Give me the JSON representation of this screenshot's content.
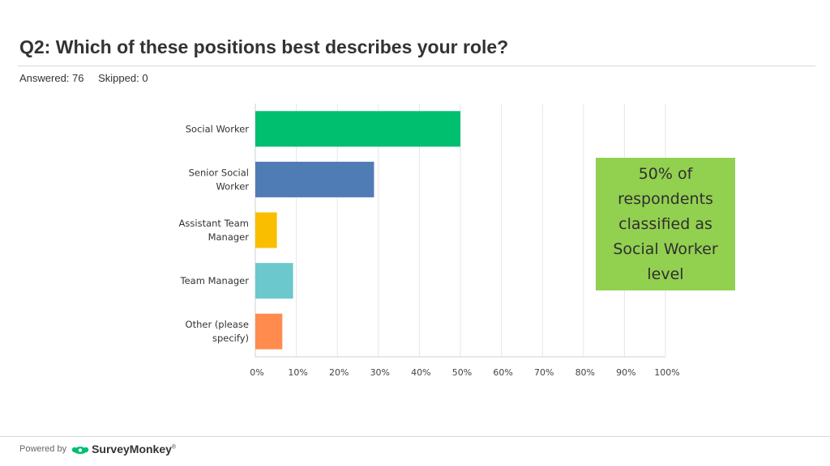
{
  "header": {
    "title": "Q2: Which of these positions best describes your role?",
    "answered": "Answered: 76",
    "skipped": "Skipped: 0"
  },
  "chart_data": {
    "type": "bar",
    "orientation": "horizontal",
    "categories": [
      [
        "Social Worker"
      ],
      [
        "Senior Social",
        "Worker"
      ],
      [
        "Assistant Team",
        "Manager"
      ],
      [
        "Team Manager"
      ],
      [
        "Other (please",
        "specify)"
      ]
    ],
    "values": [
      50.0,
      28.95,
      5.26,
      9.21,
      6.58
    ],
    "colors": [
      "#00bf6f",
      "#507cb6",
      "#f9be00",
      "#6bc8cd",
      "#ff8b4f"
    ],
    "xticks": [
      "0%",
      "10%",
      "20%",
      "30%",
      "40%",
      "50%",
      "60%",
      "70%",
      "80%",
      "90%",
      "100%"
    ],
    "xlim": [
      0,
      100
    ],
    "grid": true,
    "title": "",
    "xlabel": "",
    "ylabel": ""
  },
  "callout": {
    "text": "50% of respondents classified as Social Worker level",
    "color": "#92d050"
  },
  "footer": {
    "powered_by": "Powered by",
    "brand": "SurveyMonkey",
    "trademark": "®",
    "brand_color": "#00bf6f",
    "brand_icon": "surveymonkey-logo-icon"
  }
}
